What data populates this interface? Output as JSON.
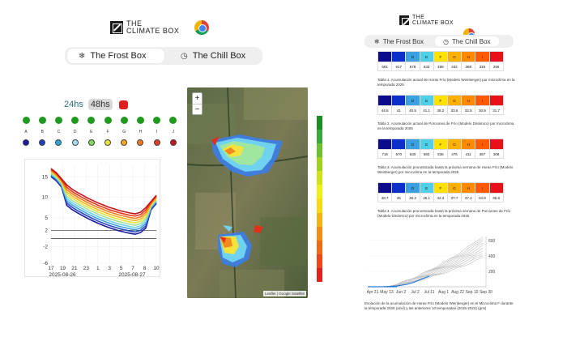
{
  "brand": {
    "line1": "THE",
    "line2": "CLIMATE BOX"
  },
  "tabs": [
    {
      "label": "The Frost Box",
      "icon": "snow-icon",
      "active": true
    },
    {
      "label": "The Chill Box",
      "icon": "clock-icon",
      "active": false
    }
  ],
  "hours": {
    "h24": "24hs",
    "h48": "48hs"
  },
  "stations": {
    "letters": [
      "A",
      "B",
      "C",
      "D",
      "E",
      "F",
      "G",
      "H",
      "I",
      "J"
    ],
    "colors": [
      "#1a1aa0",
      "#1f3fbf",
      "#2aa7d6",
      "#9fe0f0",
      "#7ed957",
      "#e6e33a",
      "#f5a623",
      "#f47a1f",
      "#e63a1f",
      "#c4131a"
    ]
  },
  "temp_chart": {
    "chart_data": {
      "type": "line",
      "yticks": [
        "15",
        "10",
        "5",
        "2",
        "-2",
        "-6"
      ],
      "xticks": [
        "17",
        "19",
        "21",
        "23",
        "1",
        "3",
        "5",
        "7",
        "8",
        "10"
      ],
      "dates": [
        "2025-08-26",
        "2025-08-27"
      ],
      "ylim": [
        -6,
        18
      ],
      "thresholds": [
        2,
        0
      ]
    }
  },
  "map": {
    "attribution": "Leaflet | Google Satellite",
    "zoom_in": "+",
    "zoom_out": "−"
  },
  "legend_colors": [
    "#1e8f1e",
    "#3aa83a",
    "#6cc12f",
    "#9fd21f",
    "#cfe21a",
    "#eef018",
    "#f9d816",
    "#f7b316",
    "#f48d17",
    "#f06a18",
    "#ec461a",
    "#e2201c"
  ],
  "right": {
    "tabs": [
      {
        "label": "The Frost Box",
        "active": false
      },
      {
        "label": "The Chill Box",
        "active": true
      }
    ],
    "tables": [
      {
        "values": [
          "661",
          "617",
          "578",
          "533",
          "489",
          "432",
          "368",
          "315",
          "266"
        ],
        "caption": "Tabla 1. Acumulación actual de Horas Frío (Modelo Weinberger) por microclima en la temporada 2025"
      },
      {
        "values": [
          "44.6",
          "41",
          "40.5",
          "41.1",
          "38.2",
          "33.6",
          "32.5",
          "30.9",
          "31.7"
        ],
        "caption": "Tabla 2. Acumulación actual de Porciones de Frío (Modelo Dinámico) por microclima en la temporada 2025"
      },
      {
        "values": [
          "716",
          "670",
          "630",
          "583",
          "536",
          "476",
          "411",
          "357",
          "308"
        ],
        "caption": "Tabla 3. Acumulación pronosticada hasta la próxima semana de Horas Frío (Modelo Weinberger) por microclima en la temporada 2025"
      },
      {
        "values": [
          "48.7",
          "45",
          "45.2",
          "45.1",
          "42.3",
          "37.7",
          "37.4",
          "34.8",
          "35.8"
        ],
        "caption": "Tabla 4. Acumulación pronosticada hasta la próxima semana de Porciones de Frío (Modelo Dinámico) por microclima en la temporada 2025"
      }
    ],
    "table_letters": [
      "",
      "",
      "D",
      "E",
      "F",
      "G",
      "H",
      "I",
      ""
    ],
    "table_colors": [
      "#0b0b8c",
      "#0b2fc8",
      "#3aa0e0",
      "#4fd0e6",
      "#ffe100",
      "#ffb000",
      "#ff8a00",
      "#ff5a00",
      "#e8101a"
    ],
    "season_chart": {
      "chart_data": {
        "type": "line",
        "xticks": [
          "Apr 21",
          "May 13",
          "Jun 2",
          "Jul 2",
          "Jul 11",
          "Aug 1",
          "Aug 22",
          "Sep 10",
          "Sep 30"
        ],
        "yticks": [
          "600",
          "400",
          "200"
        ],
        "ylim": [
          0,
          650
        ]
      },
      "caption": "Evolución de la acumulación de Horas Frío (Modelo Weinberger) en el Microclima F durante la temporada 2025 (azul) y las anteriores 10 temporadas (2015-2024) (gris)"
    }
  }
}
